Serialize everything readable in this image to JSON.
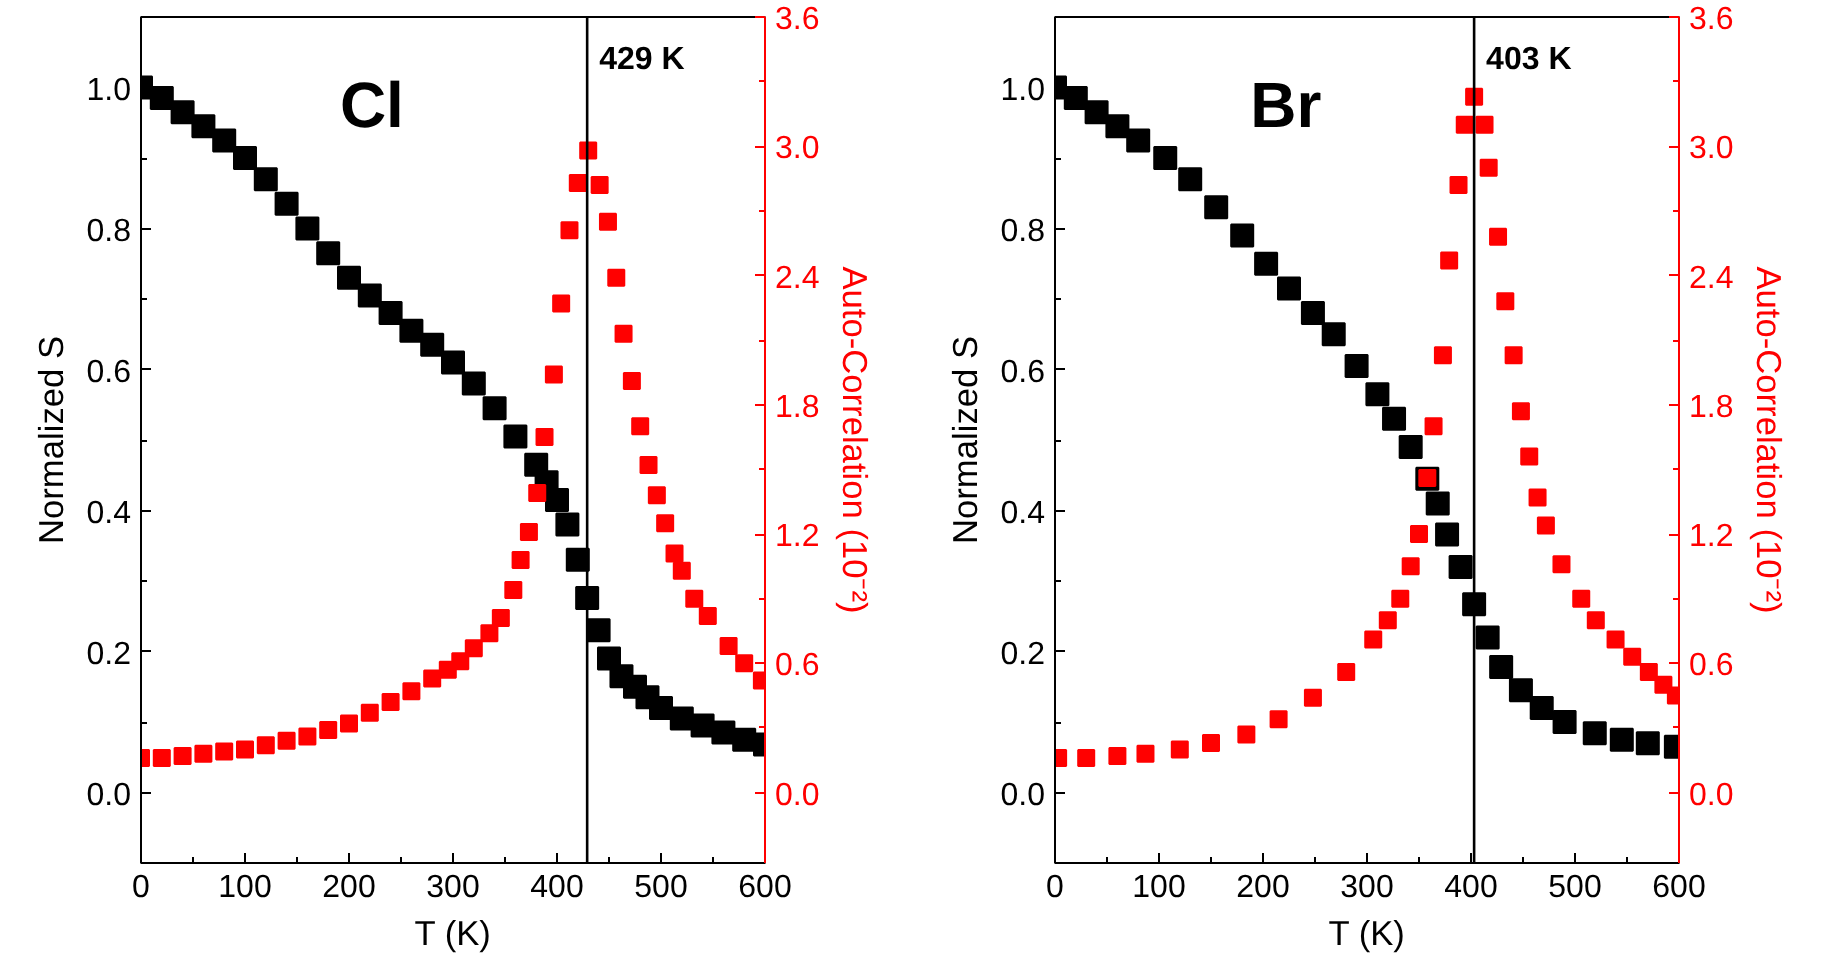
{
  "chart_data": [
    {
      "type": "scatter",
      "title": "Cl",
      "xlabel": "T (K)",
      "ylabel": "Normalized S",
      "y2label": "Auto-Correlation (10⁻²)",
      "marker": "square",
      "grid": false,
      "xlim": [
        0,
        600
      ],
      "xticks": [
        0,
        100,
        200,
        300,
        400,
        500,
        600
      ],
      "ylim": [
        -0.1,
        1.1
      ],
      "yticks": [
        {
          "value": 0,
          "label": "0.0"
        },
        {
          "value": 0.2,
          "label": "0.2"
        },
        {
          "value": 0.4,
          "label": "0.4"
        },
        {
          "value": 0.6,
          "label": "0.6"
        },
        {
          "value": 0.8,
          "label": "0.8"
        },
        {
          "value": 1.0,
          "label": "1.0"
        }
      ],
      "y2lim": [
        -0.327,
        3.6
      ],
      "y2ticks": [
        {
          "value": 0,
          "label": "0.0"
        },
        {
          "value": 0.6,
          "label": "0.6"
        },
        {
          "value": 1.2,
          "label": "1.2"
        },
        {
          "value": 1.8,
          "label": "1.8"
        },
        {
          "value": 2.4,
          "label": "2.4"
        },
        {
          "value": 3.0,
          "label": "3.0"
        },
        {
          "value": 3.6,
          "label": "3.6"
        }
      ],
      "ref_lines": [
        {
          "axis": "x",
          "value": 429,
          "label": "429 K",
          "color": "#000000"
        }
      ],
      "series": [
        {
          "color": "#000000",
          "x": [
            0,
            20,
            40,
            60,
            80,
            100,
            120,
            140,
            160,
            180,
            200,
            220,
            240,
            260,
            280,
            300,
            320,
            340,
            360,
            380,
            390,
            400,
            410,
            420,
            429,
            440,
            450,
            462,
            475,
            487,
            500,
            520,
            540,
            560,
            580,
            600
          ],
          "values": [
            1.0,
            0.985,
            0.965,
            0.945,
            0.925,
            0.9,
            0.87,
            0.835,
            0.8,
            0.765,
            0.73,
            0.705,
            0.68,
            0.655,
            0.635,
            0.61,
            0.58,
            0.545,
            0.505,
            0.465,
            0.44,
            0.415,
            0.38,
            0.33,
            0.276,
            0.23,
            0.19,
            0.165,
            0.15,
            0.135,
            0.12,
            0.105,
            0.095,
            0.085,
            0.075,
            0.068
          ]
        },
        {
          "color": "#ff0000",
          "axis": "y2",
          "x": [
            0,
            20,
            40,
            60,
            80,
            100,
            120,
            140,
            160,
            180,
            200,
            220,
            240,
            260,
            280,
            295,
            307,
            320,
            335,
            346,
            358,
            365,
            373,
            381,
            388,
            397,
            404,
            412,
            420,
            430,
            441,
            449,
            457,
            464,
            472,
            480,
            488,
            496,
            504,
            513,
            520,
            532,
            545,
            565,
            580,
            597
          ],
          "values": [
            0.16,
            0.16,
            0.17,
            0.18,
            0.19,
            0.2,
            0.22,
            0.24,
            0.26,
            0.29,
            0.32,
            0.37,
            0.42,
            0.47,
            0.53,
            0.57,
            0.61,
            0.67,
            0.74,
            0.81,
            0.94,
            1.08,
            1.21,
            1.39,
            1.65,
            1.94,
            2.27,
            2.61,
            2.83,
            2.98,
            2.82,
            2.65,
            2.39,
            2.13,
            1.91,
            1.7,
            1.52,
            1.38,
            1.25,
            1.11,
            1.03,
            0.9,
            0.82,
            0.68,
            0.6,
            0.52
          ]
        }
      ]
    },
    {
      "type": "scatter",
      "title": "Br",
      "xlabel": "T (K)",
      "ylabel": "Normalized S",
      "y2label": "Auto-Correlation (10⁻²)",
      "marker": "square",
      "grid": false,
      "xlim": [
        0,
        600
      ],
      "xticks": [
        0,
        100,
        200,
        300,
        400,
        500,
        600
      ],
      "ylim": [
        -0.1,
        1.1
      ],
      "yticks": [
        {
          "value": 0,
          "label": "0.0"
        },
        {
          "value": 0.2,
          "label": "0.2"
        },
        {
          "value": 0.4,
          "label": "0.4"
        },
        {
          "value": 0.6,
          "label": "0.6"
        },
        {
          "value": 0.8,
          "label": "0.8"
        },
        {
          "value": 1.0,
          "label": "1.0"
        }
      ],
      "y2lim": [
        -0.327,
        3.6
      ],
      "y2ticks": [
        {
          "value": 0,
          "label": "0.0"
        },
        {
          "value": 0.6,
          "label": "0.6"
        },
        {
          "value": 1.2,
          "label": "1.2"
        },
        {
          "value": 1.8,
          "label": "1.8"
        },
        {
          "value": 2.4,
          "label": "2.4"
        },
        {
          "value": 3.0,
          "label": "3.0"
        },
        {
          "value": 3.6,
          "label": "3.6"
        }
      ],
      "ref_lines": [
        {
          "axis": "x",
          "value": 403,
          "label": "403 K",
          "color": "#000000"
        }
      ],
      "series": [
        {
          "color": "#000000",
          "x": [
            0,
            20,
            40,
            60,
            80,
            106,
            130,
            155,
            180,
            203,
            225,
            248,
            268,
            290,
            310,
            326,
            342,
            358,
            368,
            377,
            390,
            403,
            416,
            429,
            448,
            468,
            490,
            519,
            545,
            570,
            597
          ],
          "values": [
            1.0,
            0.985,
            0.965,
            0.945,
            0.925,
            0.9,
            0.87,
            0.83,
            0.79,
            0.75,
            0.715,
            0.68,
            0.65,
            0.605,
            0.565,
            0.53,
            0.49,
            0.445,
            0.41,
            0.366,
            0.32,
            0.267,
            0.22,
            0.178,
            0.145,
            0.12,
            0.1,
            0.084,
            0.075,
            0.07,
            0.065
          ]
        },
        {
          "color": "#ff0000",
          "axis": "y2",
          "x": [
            3,
            30,
            60,
            87,
            120,
            150,
            184,
            215,
            248,
            280,
            306,
            320,
            332,
            342,
            350,
            358,
            364,
            373,
            379,
            388,
            394,
            403,
            413,
            417,
            426,
            433,
            441,
            448,
            456,
            464,
            472,
            487,
            506,
            520,
            539,
            555,
            571,
            585,
            597
          ],
          "values": [
            0.16,
            0.16,
            0.17,
            0.18,
            0.2,
            0.23,
            0.27,
            0.34,
            0.44,
            0.56,
            0.71,
            0.8,
            0.9,
            1.05,
            1.2,
            1.46,
            1.7,
            2.03,
            2.47,
            2.82,
            3.1,
            3.23,
            3.1,
            2.9,
            2.58,
            2.28,
            2.03,
            1.77,
            1.56,
            1.37,
            1.24,
            1.06,
            0.9,
            0.8,
            0.71,
            0.63,
            0.56,
            0.5,
            0.45
          ]
        }
      ]
    }
  ]
}
